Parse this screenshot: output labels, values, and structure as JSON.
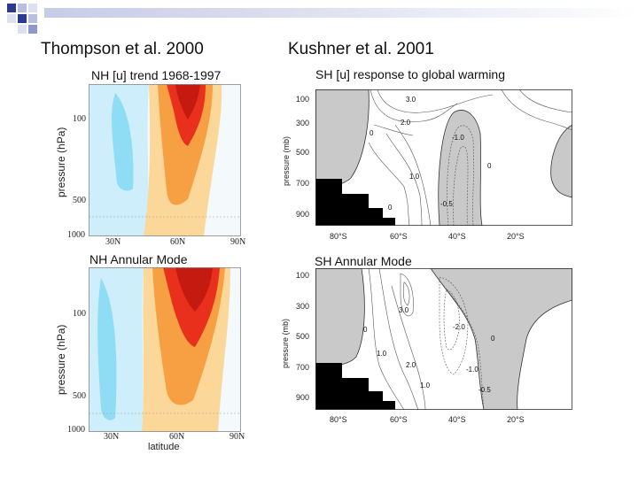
{
  "slide": {
    "left_heading": "Thompson et al. 2000",
    "right_heading": "Kushner et al. 2001"
  },
  "panels": {
    "nh_trend": {
      "title": "NH [u] trend 1968-1997",
      "ylabel": "pressure (hPa)",
      "yticks": [
        "100",
        "500",
        "1000"
      ],
      "xticks": [
        "30N",
        "60N",
        "90N"
      ]
    },
    "sh_response": {
      "title": "SH [u] response to global warming",
      "ylabel": "pressure (mb)",
      "yticks": [
        "100",
        "300",
        "500",
        "700",
        "900"
      ],
      "xticks": [
        "80°S",
        "60°S",
        "40°S",
        "20°S"
      ],
      "contour_labels": [
        "3.0",
        "2.0",
        "0",
        "-1.0",
        "0",
        "1.0",
        "0",
        "-0.5"
      ]
    },
    "nh_mode": {
      "title": "NH Annular Mode",
      "ylabel": "pressure (hPa)",
      "yticks": [
        "100",
        "500",
        "1000"
      ],
      "xticks": [
        "30N",
        "60N",
        "90N"
      ],
      "xlabel": "latitude"
    },
    "sh_mode": {
      "title": "SH Annular Mode",
      "ylabel": "pressure (mb)",
      "yticks": [
        "100",
        "300",
        "500",
        "700",
        "900"
      ],
      "xticks": [
        "80°S",
        "60°S",
        "40°S",
        "20°S"
      ],
      "contour_labels": [
        "3.0",
        "0",
        "1.0",
        "2.0",
        "1.0",
        "-2.0",
        "0",
        "-1.0",
        "-0.5"
      ]
    }
  },
  "colors": {
    "bullet_dark": "#2b3a8f",
    "bullet_light": "#b9bfe0",
    "fill_red": "#e8301c",
    "fill_orange": "#f6a043",
    "fill_light_orange": "#fbd79a",
    "fill_cyan": "#8fdcf5",
    "fill_light_cyan": "#cdeefa",
    "shade_gray": "#c9c9c9"
  }
}
